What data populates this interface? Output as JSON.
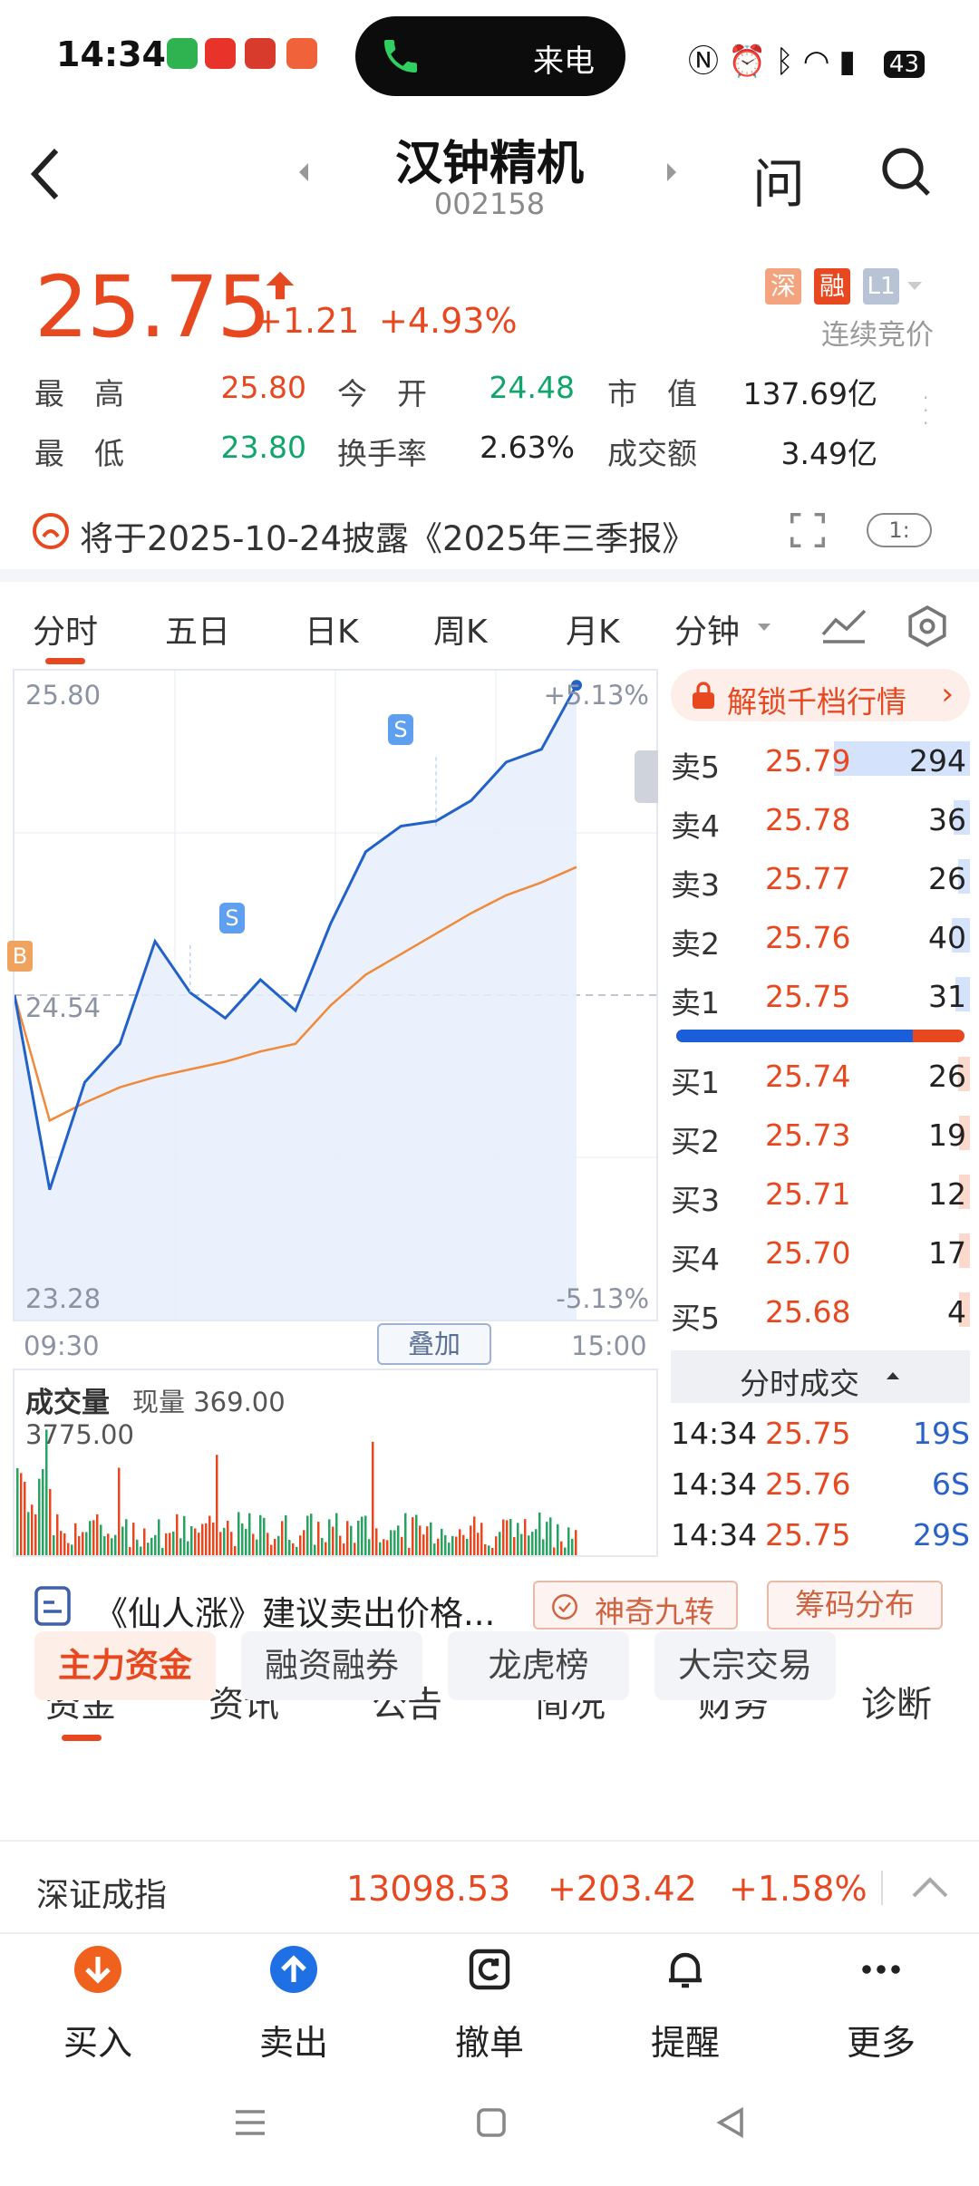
{
  "status_bar": {
    "time": "14:34",
    "call_label": "来电",
    "battery": "43"
  },
  "header": {
    "title": "汉钟精机",
    "code": "002158",
    "ask_label": "问"
  },
  "quote": {
    "price": "25.75",
    "change": "+1.21",
    "change_pct": "+4.93%",
    "tag_exchange": "深",
    "tag_margin": "融",
    "tag_level": "L1",
    "status": "连续竞价"
  },
  "stats": [
    {
      "label": "最　高",
      "value": "25.80",
      "color": "red"
    },
    {
      "label": "今　开",
      "value": "24.48",
      "color": "green"
    },
    {
      "label": "市　值",
      "value": "137.69亿",
      "color": "black"
    },
    {
      "label": "最　低",
      "value": "23.80",
      "color": "green"
    },
    {
      "label": "换手率",
      "value": "2.63%",
      "color": "black"
    },
    {
      "label": "成交额",
      "value": "3.49亿",
      "color": "black"
    }
  ],
  "notice": {
    "text": "将于2025-10-24披露《2025年三季报》",
    "badge": "1:"
  },
  "chart_tabs": [
    "分时",
    "五日",
    "日K",
    "周K",
    "月K",
    "分钟"
  ],
  "chart_labels": {
    "high": "25.80",
    "low": "23.28",
    "prev_close": "24.54",
    "up_pct": "+5.13%",
    "down_pct": "-5.13%",
    "start": "09:30",
    "end": "15:00",
    "overlay": "叠加",
    "b_marker": "B",
    "s_marker": "S"
  },
  "chart_data": {
    "type": "line",
    "title": "",
    "ylim": [
      23.28,
      25.8
    ],
    "prev_close": 24.54,
    "x": [
      "09:30",
      "09:45",
      "10:00",
      "10:15",
      "10:30",
      "10:45",
      "11:00",
      "11:15",
      "11:30",
      "13:00",
      "13:15",
      "13:30",
      "13:45",
      "14:00",
      "14:15",
      "14:30",
      "14:34"
    ],
    "series": [
      {
        "values": [
          24.54,
          23.78,
          24.2,
          24.35,
          24.75,
          24.55,
          24.45,
          24.6,
          24.48,
          24.82,
          25.1,
          25.2,
          25.22,
          25.3,
          25.45,
          25.5,
          25.75
        ]
      },
      {
        "values": [
          24.54,
          24.05,
          24.12,
          24.18,
          24.22,
          24.25,
          24.28,
          24.32,
          24.35,
          24.5,
          24.62,
          24.7,
          24.78,
          24.86,
          24.93,
          24.98,
          25.04
        ]
      }
    ],
    "volume_label": "成交量",
    "volume_now": "现量 369.00",
    "volume_max": "3775.00"
  },
  "order_book": {
    "unlock": "解锁千档行情",
    "asks": [
      {
        "label": "卖5",
        "price": "25.79",
        "vol": "294"
      },
      {
        "label": "卖4",
        "price": "25.78",
        "vol": "36"
      },
      {
        "label": "卖3",
        "price": "25.77",
        "vol": "26"
      },
      {
        "label": "卖2",
        "price": "25.76",
        "vol": "40"
      },
      {
        "label": "卖1",
        "price": "25.75",
        "vol": "31"
      }
    ],
    "bids": [
      {
        "label": "买1",
        "price": "25.74",
        "vol": "26"
      },
      {
        "label": "买2",
        "price": "25.73",
        "vol": "19"
      },
      {
        "label": "买3",
        "price": "25.71",
        "vol": "12"
      },
      {
        "label": "买4",
        "price": "25.70",
        "vol": "17"
      },
      {
        "label": "买5",
        "price": "25.68",
        "vol": "4"
      }
    ],
    "trades_title": "分时成交",
    "trades": [
      {
        "time": "14:34",
        "price": "25.75",
        "vol": "19S"
      },
      {
        "time": "14:34",
        "price": "25.76",
        "vol": "6S"
      },
      {
        "time": "14:34",
        "price": "25.75",
        "vol": "29S"
      }
    ]
  },
  "signal_bar": {
    "text": "《仙人涨》建议卖出价格...",
    "button1": "神奇九转",
    "button2": "筹码分布"
  },
  "bottom_tabs": [
    "资金",
    "资讯",
    "公告",
    "简况",
    "财务",
    "诊断"
  ],
  "fund_pills": [
    "主力资金",
    "融资融券",
    "龙虎榜",
    "大宗交易"
  ],
  "index_bar": {
    "name": "深证成指",
    "value": "13098.53",
    "change": "+203.42",
    "pct": "+1.58%"
  },
  "actions": [
    {
      "label": "买入",
      "icon": "buy-icon"
    },
    {
      "label": "卖出",
      "icon": "sell-icon"
    },
    {
      "label": "撤单",
      "icon": "cancel-order-icon"
    },
    {
      "label": "提醒",
      "icon": "bell-icon"
    },
    {
      "label": "更多",
      "icon": "more-icon"
    }
  ]
}
